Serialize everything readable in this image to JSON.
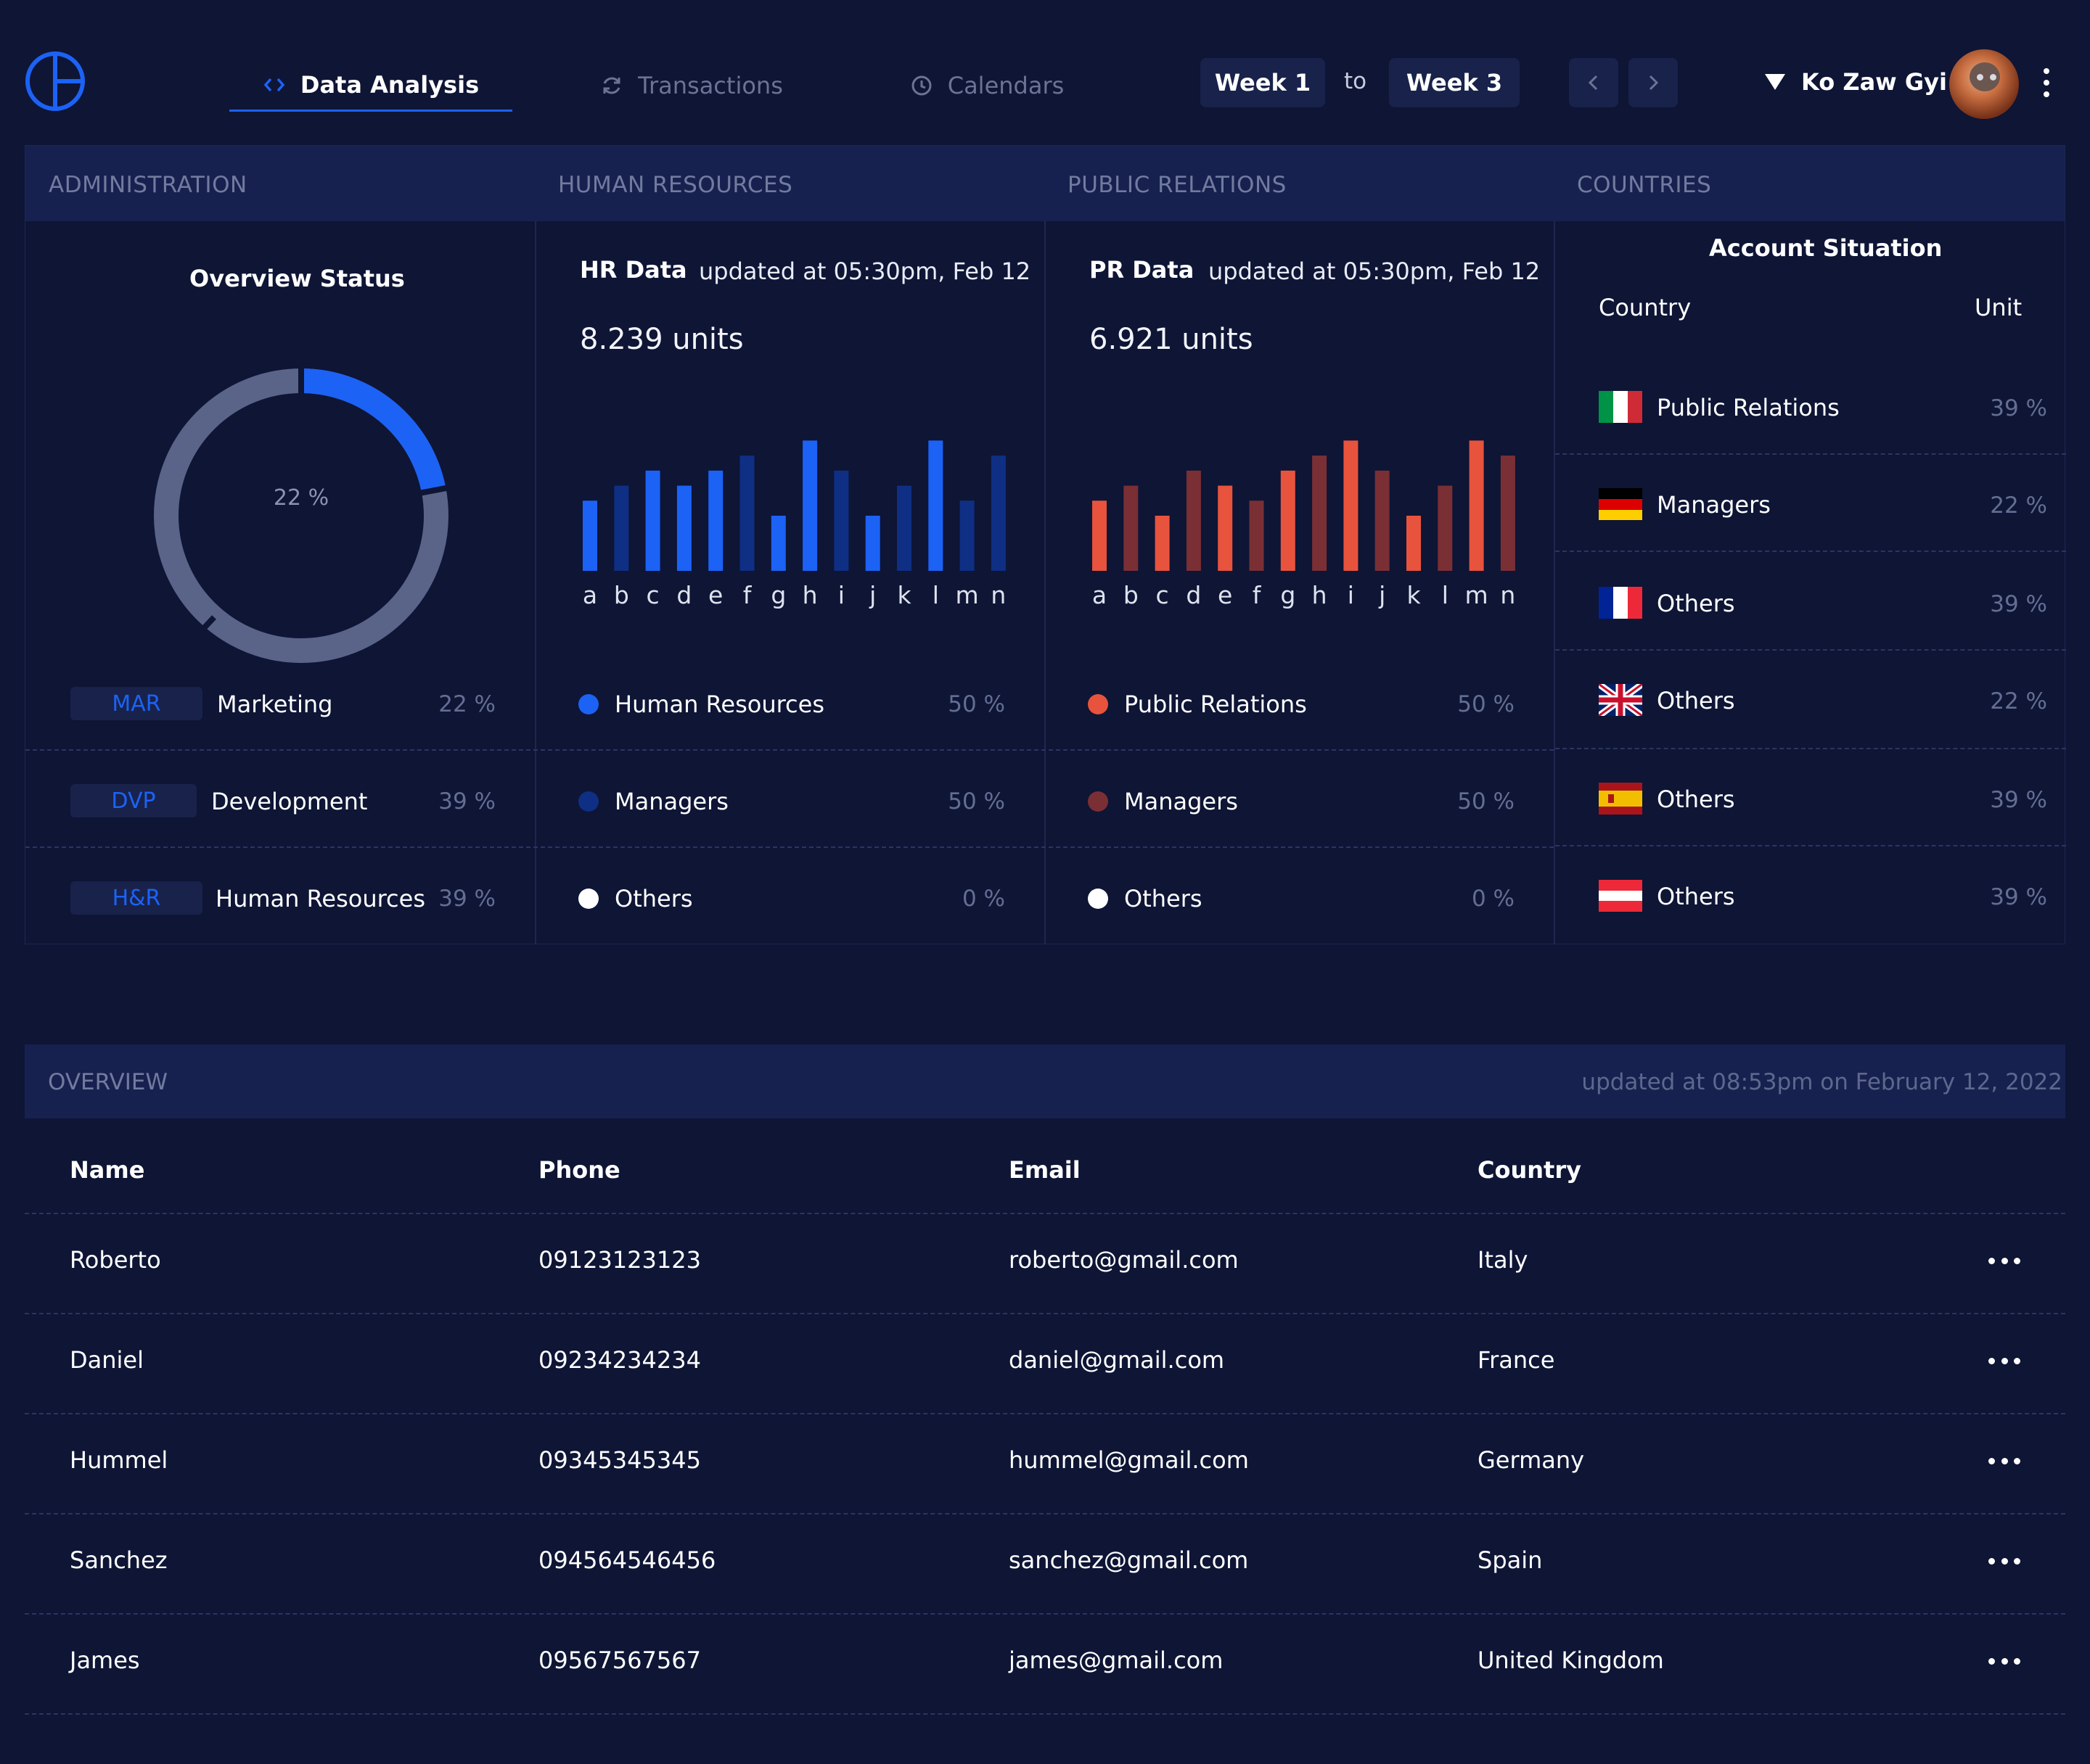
{
  "nav": {
    "tabs": [
      {
        "label": "Data Analysis",
        "icon": "code-icon"
      },
      {
        "label": "Transactions",
        "icon": "refresh-icon"
      },
      {
        "label": "Calendars",
        "icon": "clock-icon"
      }
    ],
    "week_from": "Week 1",
    "to_label": "to",
    "week_to": "Week 3",
    "user_name": "Ko Zaw Gyi"
  },
  "sections": {
    "administration": "ADMINISTRATION",
    "human_resources": "HUMAN RESOURCES",
    "public_relations": "PUBLIC RELATIONS",
    "countries": "COUNTRIES"
  },
  "overview_status": {
    "title": "Overview Status",
    "donut_label": "22 %",
    "donut_value_pct": 22,
    "items": [
      {
        "tag": "MAR",
        "label": "Marketing",
        "pct": "22 %"
      },
      {
        "tag": "DVP",
        "label": "Development",
        "pct": "39 %"
      },
      {
        "tag": "H&R",
        "label": "Human Resources",
        "pct": "39 %"
      }
    ]
  },
  "hr": {
    "title": "HR Data",
    "updated": "updated at 05:30pm, Feb 12",
    "units": "8.239 units",
    "legend": [
      {
        "label": "Human Resources",
        "pct": "50 %",
        "color": "#1c62f5"
      },
      {
        "label": "Managers",
        "pct": "50 %",
        "color": "#0f2f85"
      },
      {
        "label": "Others",
        "pct": "0 %",
        "color": "#ffffff"
      }
    ]
  },
  "pr": {
    "title": "PR Data",
    "updated": "updated at 05:30pm, Feb 12",
    "units": "6.921 units",
    "legend": [
      {
        "label": "Public Relations",
        "pct": "50 %",
        "color": "#e8533d"
      },
      {
        "label": "Managers",
        "pct": "50 %",
        "color": "#7a2f35"
      },
      {
        "label": "Others",
        "pct": "0 %",
        "color": "#ffffff"
      }
    ]
  },
  "chart_data": [
    {
      "type": "bar",
      "categories": [
        "a",
        "b",
        "c",
        "d",
        "e",
        "f",
        "g",
        "h",
        "i",
        "j",
        "k",
        "l",
        "m",
        "n"
      ],
      "values": [
        56,
        68,
        80,
        68,
        80,
        92,
        44,
        104,
        80,
        44,
        68,
        104,
        56,
        92
      ],
      "colors": [
        "#1c62f5",
        "#0f2f85",
        "#1c62f5",
        "#1c62f5",
        "#1c62f5",
        "#0f2f85",
        "#1c62f5",
        "#1c62f5",
        "#0f2f85",
        "#1c62f5",
        "#0f2f85",
        "#1c62f5",
        "#0f2f85",
        "#0f2f85"
      ],
      "ylim": [
        0,
        110
      ]
    },
    {
      "type": "bar",
      "categories": [
        "a",
        "b",
        "c",
        "d",
        "e",
        "f",
        "g",
        "h",
        "i",
        "j",
        "k",
        "l",
        "m",
        "n"
      ],
      "values": [
        56,
        68,
        44,
        80,
        68,
        56,
        80,
        92,
        104,
        80,
        44,
        68,
        104,
        92
      ],
      "colors": [
        "#e8533d",
        "#7a2f35",
        "#e8533d",
        "#7a2f35",
        "#e8533d",
        "#7a2f35",
        "#e8533d",
        "#7a2f35",
        "#e8533d",
        "#7a2f35",
        "#e8533d",
        "#7a2f35",
        "#e8533d",
        "#7a2f35"
      ],
      "ylim": [
        0,
        110
      ]
    }
  ],
  "account": {
    "title": "Account Situation",
    "col_country": "Country",
    "col_unit": "Unit",
    "rows": [
      {
        "flag": "italy-flag",
        "label": "Public Relations",
        "pct": "39 %"
      },
      {
        "flag": "germany-flag",
        "label": "Managers",
        "pct": "22 %"
      },
      {
        "flag": "france-flag",
        "label": "Others",
        "pct": "39 %"
      },
      {
        "flag": "uk-flag",
        "label": "Others",
        "pct": "22 %"
      },
      {
        "flag": "spain-flag",
        "label": "Others",
        "pct": "39 %"
      },
      {
        "flag": "austria-flag",
        "label": "Others",
        "pct": "39 %"
      }
    ]
  },
  "overview": {
    "title": "OVERVIEW",
    "updated": "updated at 08:53pm on February 12, 2022",
    "headers": [
      "Name",
      "Phone",
      "Email",
      "Country"
    ],
    "rows": [
      {
        "name": "Roberto",
        "phone": "09123123123",
        "email": "roberto@gmail.com",
        "country": "Italy"
      },
      {
        "name": "Daniel",
        "phone": "09234234234",
        "email": "daniel@gmail.com",
        "country": "France"
      },
      {
        "name": "Hummel",
        "phone": "09345345345",
        "email": "hummel@gmail.com",
        "country": "Germany"
      },
      {
        "name": "Sanchez",
        "phone": "094564546456",
        "email": "sanchez@gmail.com",
        "country": "Spain"
      },
      {
        "name": "James",
        "phone": "09567567567",
        "email": "james@gmail.com",
        "country": "United Kingdom"
      }
    ]
  }
}
